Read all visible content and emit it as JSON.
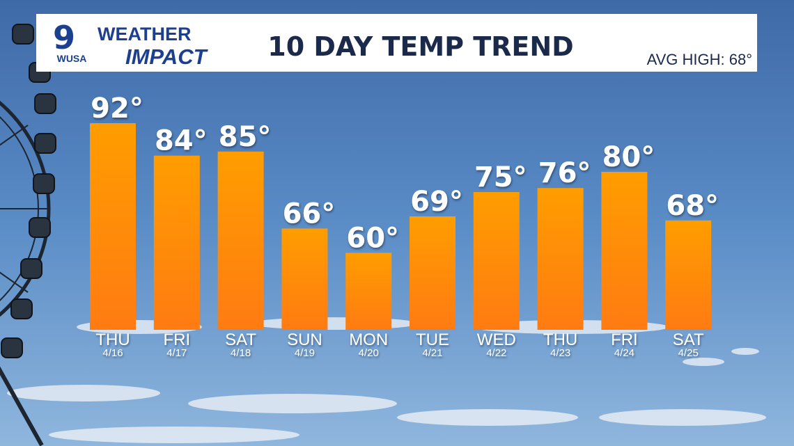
{
  "header": {
    "logo_number": "9",
    "logo_station": "WUSA",
    "brand_top": "WEATHER",
    "brand_bottom": "IMPACT",
    "avg_high": "AVG HIGH: 68°"
  },
  "chart_data": {
    "type": "bar",
    "title": "10 DAY TEMP TREND",
    "categories": [
      "THU",
      "FRI",
      "SAT",
      "SUN",
      "MON",
      "TUE",
      "WED",
      "THU",
      "FRI",
      "SAT"
    ],
    "dates": [
      "4/16",
      "4/17",
      "4/18",
      "4/19",
      "4/20",
      "4/21",
      "4/22",
      "4/23",
      "4/24",
      "4/25"
    ],
    "values": [
      92,
      84,
      85,
      66,
      60,
      69,
      75,
      76,
      80,
      68
    ],
    "value_labels": [
      "92°",
      "84°",
      "85°",
      "66°",
      "60°",
      "69°",
      "75°",
      "76°",
      "80°",
      "68°"
    ],
    "ylim": [
      41,
      100
    ],
    "color": "#ff8a00"
  }
}
